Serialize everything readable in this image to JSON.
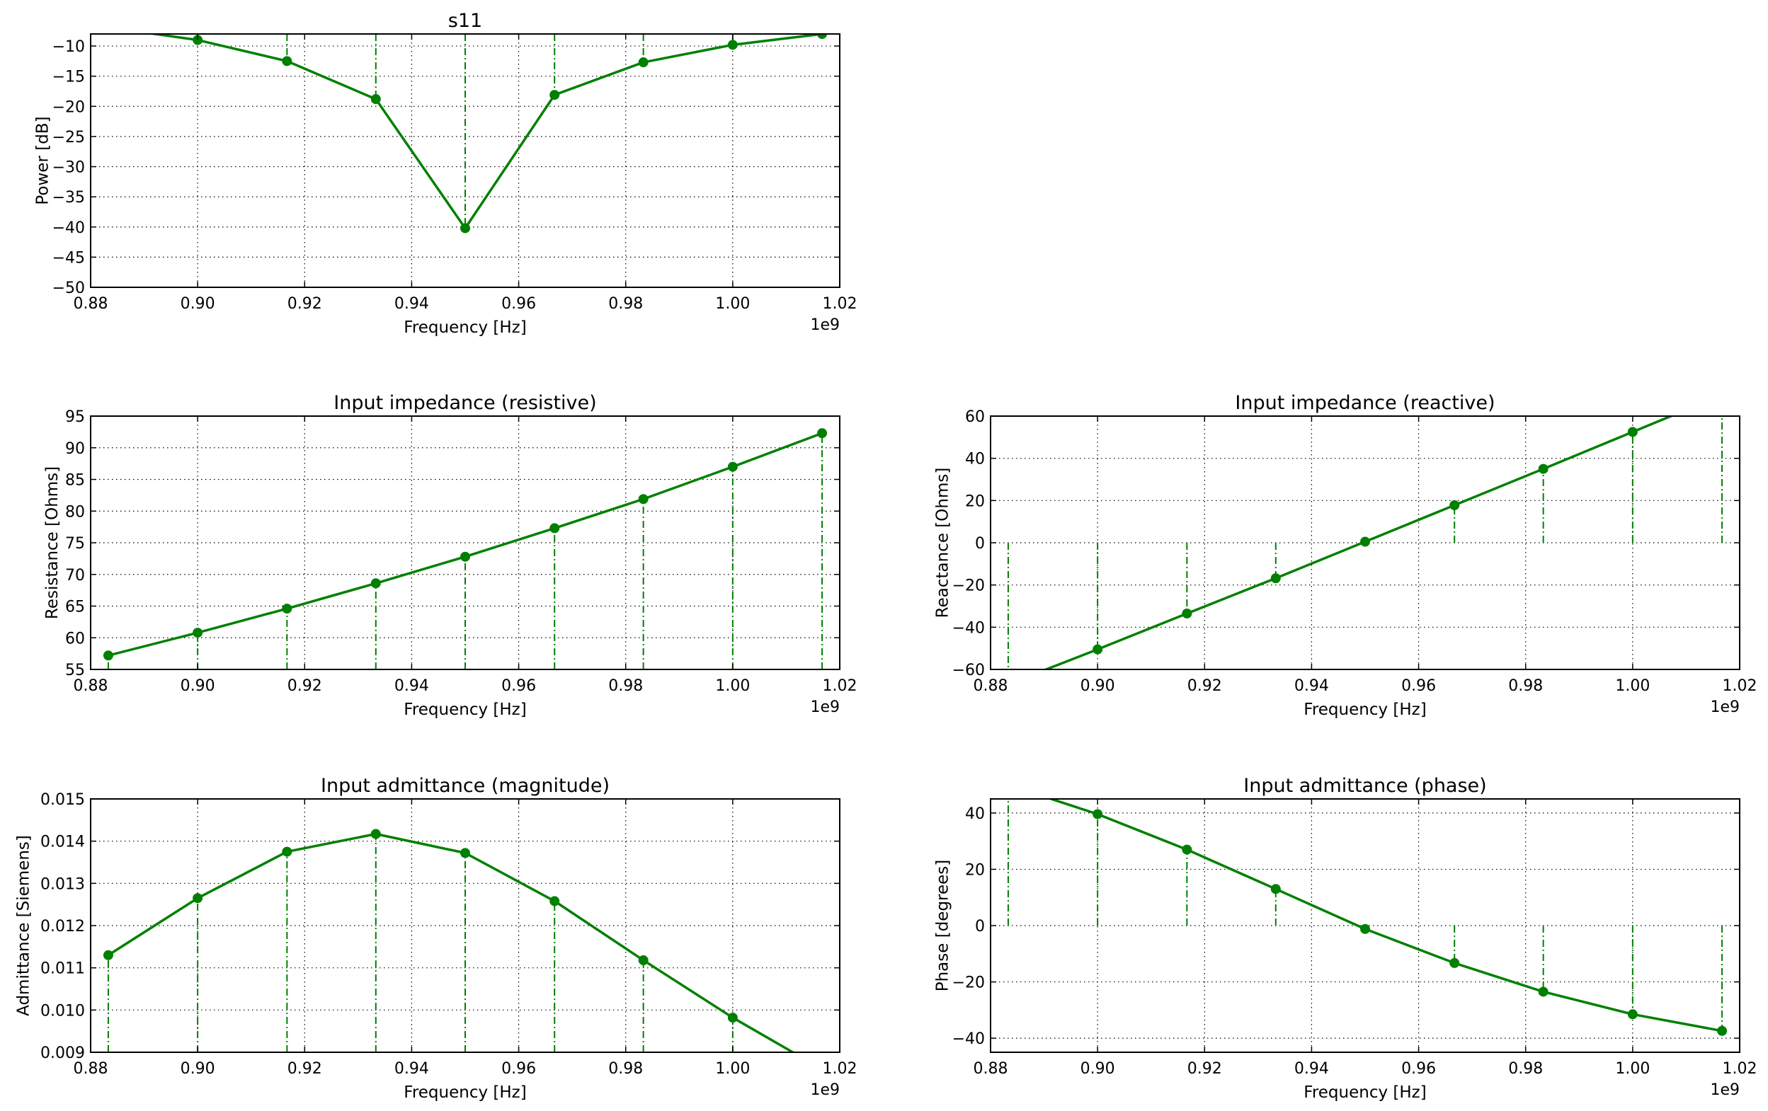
{
  "figure": {
    "background": "#ffffff",
    "line_color": "#008000"
  },
  "chart_data": [
    {
      "id": "s11",
      "type": "line",
      "title": "s11",
      "xlabel": "Frequency [Hz]",
      "ylabel": "Power [dB]",
      "x_offset_label": "1e9",
      "xlim": [
        0.88,
        1.02
      ],
      "ylim": [
        -50,
        -8
      ],
      "xticks": [
        0.88,
        0.9,
        0.92,
        0.94,
        0.96,
        0.98,
        1.0,
        1.02
      ],
      "xtick_labels": [
        "0.88",
        "0.90",
        "0.92",
        "0.94",
        "0.96",
        "0.98",
        "1.00",
        "1.02"
      ],
      "yticks": [
        -50,
        -45,
        -40,
        -35,
        -30,
        -25,
        -20,
        -15,
        -10
      ],
      "ytick_labels": [
        "−50",
        "−45",
        "−40",
        "−35",
        "−30",
        "−25",
        "−20",
        "−15",
        "−10"
      ],
      "grid": true,
      "stem_base": -8,
      "x": [
        0.8833,
        0.9,
        0.9167,
        0.9333,
        0.95,
        0.9667,
        0.9833,
        1.0,
        1.0167
      ],
      "y": [
        -6.9,
        -9.0,
        -12.5,
        -18.8,
        -40.2,
        -18.1,
        -12.7,
        -9.8,
        -8.0
      ],
      "series": [
        {
          "values": [
            -6.9,
            -9.0,
            -12.5,
            -18.8,
            -40.2,
            -18.1,
            -12.7,
            -9.8,
            -8.0
          ],
          "color": "#008000"
        }
      ]
    },
    {
      "id": "resistive",
      "type": "line",
      "title": "Input impedance (resistive)",
      "xlabel": "Frequency [Hz]",
      "ylabel": "Resistance [Ohms]",
      "x_offset_label": "1e9",
      "xlim": [
        0.88,
        1.02
      ],
      "ylim": [
        55,
        95
      ],
      "xticks": [
        0.88,
        0.9,
        0.92,
        0.94,
        0.96,
        0.98,
        1.0,
        1.02
      ],
      "xtick_labels": [
        "0.88",
        "0.90",
        "0.92",
        "0.94",
        "0.96",
        "0.98",
        "1.00",
        "1.02"
      ],
      "yticks": [
        55,
        60,
        65,
        70,
        75,
        80,
        85,
        90,
        95
      ],
      "ytick_labels": [
        "55",
        "60",
        "65",
        "70",
        "75",
        "80",
        "85",
        "90",
        "95"
      ],
      "grid": true,
      "stem_base": 55,
      "x": [
        0.8833,
        0.9,
        0.9167,
        0.9333,
        0.95,
        0.9667,
        0.9833,
        1.0,
        1.0167
      ],
      "y": [
        57.2,
        60.8,
        64.6,
        68.6,
        72.8,
        77.3,
        81.9,
        87.0,
        92.3
      ],
      "series": [
        {
          "values": [
            57.2,
            60.8,
            64.6,
            68.6,
            72.8,
            77.3,
            81.9,
            87.0,
            92.3
          ],
          "color": "#008000"
        }
      ]
    },
    {
      "id": "reactive",
      "type": "line",
      "title": "Input impedance (reactive)",
      "xlabel": "Frequency [Hz]",
      "ylabel": "Reactance [Ohms]",
      "x_offset_label": "1e9",
      "xlim": [
        0.88,
        1.02
      ],
      "ylim": [
        -60,
        60
      ],
      "xticks": [
        0.88,
        0.9,
        0.92,
        0.94,
        0.96,
        0.98,
        1.0,
        1.02
      ],
      "xtick_labels": [
        "0.88",
        "0.90",
        "0.92",
        "0.94",
        "0.96",
        "0.98",
        "1.00",
        "1.02"
      ],
      "yticks": [
        -60,
        -40,
        -20,
        0,
        20,
        40,
        60
      ],
      "ytick_labels": [
        "−60",
        "−40",
        "−20",
        "0",
        "20",
        "40",
        "60"
      ],
      "grid": true,
      "stem_base": 0,
      "x": [
        0.8833,
        0.9,
        0.9167,
        0.9333,
        0.95,
        0.9667,
        0.9833,
        1.0,
        1.0167
      ],
      "y": [
        -67.0,
        -50.5,
        -33.5,
        -16.8,
        0.5,
        17.8,
        35.0,
        52.5,
        70.0
      ],
      "series": [
        {
          "values": [
            -67.0,
            -50.5,
            -33.5,
            -16.8,
            0.5,
            17.8,
            35.0,
            52.5,
            70.0
          ],
          "color": "#008000"
        }
      ]
    },
    {
      "id": "admittance-magnitude",
      "type": "line",
      "title": "Input admittance (magnitude)",
      "xlabel": "Frequency [Hz]",
      "ylabel": "Admittance [Siemens]",
      "x_offset_label": "1e9",
      "xlim": [
        0.88,
        1.02
      ],
      "ylim": [
        0.009,
        0.015
      ],
      "xticks": [
        0.88,
        0.9,
        0.92,
        0.94,
        0.96,
        0.98,
        1.0,
        1.02
      ],
      "xtick_labels": [
        "0.88",
        "0.90",
        "0.92",
        "0.94",
        "0.96",
        "0.98",
        "1.00",
        "1.02"
      ],
      "yticks": [
        0.009,
        0.01,
        0.011,
        0.012,
        0.013,
        0.014,
        0.015
      ],
      "ytick_labels": [
        "0.009",
        "0.010",
        "0.011",
        "0.012",
        "0.013",
        "0.014",
        "0.015"
      ],
      "grid": true,
      "stem_base": 0.009,
      "x": [
        0.8833,
        0.9,
        0.9167,
        0.9333,
        0.95,
        0.9667,
        0.9833,
        1.0,
        1.0167
      ],
      "y": [
        0.0113,
        0.01265,
        0.01375,
        0.01417,
        0.01372,
        0.01258,
        0.01118,
        0.00982,
        0.0086
      ],
      "series": [
        {
          "values": [
            0.0113,
            0.01265,
            0.01375,
            0.01417,
            0.01372,
            0.01258,
            0.01118,
            0.00982,
            0.0086
          ],
          "color": "#008000"
        }
      ]
    },
    {
      "id": "admittance-phase",
      "type": "line",
      "title": "Input admittance (phase)",
      "xlabel": "Frequency [Hz]",
      "ylabel": "Phase [degrees]",
      "x_offset_label": "1e9",
      "xlim": [
        0.88,
        1.02
      ],
      "ylim": [
        -45,
        45
      ],
      "xticks": [
        0.88,
        0.9,
        0.92,
        0.94,
        0.96,
        0.98,
        1.0,
        1.02
      ],
      "xtick_labels": [
        "0.88",
        "0.90",
        "0.92",
        "0.94",
        "0.96",
        "0.98",
        "1.00",
        "1.02"
      ],
      "yticks": [
        -40,
        -20,
        0,
        20,
        40
      ],
      "ytick_labels": [
        "−40",
        "−20",
        "0",
        "20",
        "40"
      ],
      "grid": true,
      "stem_base": 0,
      "x": [
        0.8833,
        0.9,
        0.9167,
        0.9333,
        0.95,
        0.9667,
        0.9833,
        1.0,
        1.0167
      ],
      "y": [
        50.0,
        39.6,
        27.0,
        13.0,
        -1.2,
        -13.3,
        -23.5,
        -31.5,
        -37.4
      ],
      "series": [
        {
          "values": [
            50.0,
            39.6,
            27.0,
            13.0,
            -1.2,
            -13.3,
            -23.5,
            -31.5,
            -37.4
          ],
          "color": "#008000"
        }
      ]
    }
  ]
}
